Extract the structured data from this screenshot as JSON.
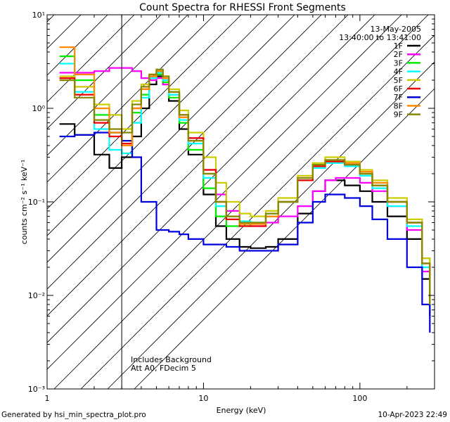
{
  "chart_data": {
    "type": "line",
    "title": "Count Spectra for RHESSI Front Segments",
    "xlabel": "Energy (keV)",
    "ylabel": "counts cm⁻² s⁻¹ keV⁻¹",
    "xscale": "log",
    "yscale": "log",
    "xlim": [
      1,
      300
    ],
    "ylim": [
      0.001,
      10
    ],
    "x_tick_labels": [
      "1",
      "10",
      "100"
    ],
    "y_tick_labels": [
      "10⁻³",
      "10⁻²",
      "10⁻¹",
      "10⁰",
      "10¹"
    ],
    "date": "13-May-2005",
    "time_range": "13:40:00 to 13:41:00",
    "annotations": [
      "Includes Background",
      "Att A0, FDecim 5"
    ],
    "hatched_region_max_kev": 3,
    "series": [
      {
        "name": "1F",
        "color": "#000000",
        "points": [
          [
            1.2,
            0.68
          ],
          [
            1.5,
            0.52
          ],
          [
            2.0,
            0.32
          ],
          [
            2.5,
            0.23
          ],
          [
            3.0,
            0.3
          ],
          [
            3.5,
            0.5
          ],
          [
            4.0,
            1.0
          ],
          [
            4.5,
            1.8
          ],
          [
            5.0,
            2.2
          ],
          [
            5.5,
            1.8
          ],
          [
            6.0,
            1.2
          ],
          [
            7.0,
            0.6
          ],
          [
            8.0,
            0.32
          ],
          [
            10.0,
            0.12
          ],
          [
            12.0,
            0.055
          ],
          [
            14.0,
            0.04
          ],
          [
            17.0,
            0.033
          ],
          [
            20.0,
            0.032
          ],
          [
            25.0,
            0.033
          ],
          [
            30.0,
            0.04
          ],
          [
            40.0,
            0.075
          ],
          [
            50.0,
            0.13
          ],
          [
            60.0,
            0.17
          ],
          [
            70.0,
            0.17
          ],
          [
            80.0,
            0.15
          ],
          [
            100.0,
            0.13
          ],
          [
            120.0,
            0.1
          ],
          [
            150.0,
            0.07
          ],
          [
            200.0,
            0.04
          ],
          [
            250.0,
            0.015
          ],
          [
            280.0,
            0.006
          ]
        ]
      },
      {
        "name": "2F",
        "color": "#ff00ff",
        "points": [
          [
            1.2,
            2.4
          ],
          [
            1.5,
            2.4
          ],
          [
            2.0,
            2.5
          ],
          [
            2.5,
            2.7
          ],
          [
            3.0,
            2.7
          ],
          [
            3.5,
            2.5
          ],
          [
            4.0,
            2.1
          ],
          [
            4.5,
            2.0
          ],
          [
            5.0,
            2.1
          ],
          [
            5.5,
            1.8
          ],
          [
            6.0,
            1.4
          ],
          [
            7.0,
            0.8
          ],
          [
            8.0,
            0.48
          ],
          [
            10.0,
            0.22
          ],
          [
            12.0,
            0.12
          ],
          [
            14.0,
            0.08
          ],
          [
            17.0,
            0.06
          ],
          [
            20.0,
            0.055
          ],
          [
            25.0,
            0.06
          ],
          [
            30.0,
            0.07
          ],
          [
            40.0,
            0.09
          ],
          [
            50.0,
            0.13
          ],
          [
            60.0,
            0.17
          ],
          [
            70.0,
            0.18
          ],
          [
            80.0,
            0.18
          ],
          [
            100.0,
            0.16
          ],
          [
            120.0,
            0.13
          ],
          [
            150.0,
            0.09
          ],
          [
            200.0,
            0.05
          ],
          [
            250.0,
            0.018
          ],
          [
            280.0,
            0.007
          ]
        ]
      },
      {
        "name": "3F",
        "color": "#00ee00",
        "points": [
          [
            1.2,
            3.6
          ],
          [
            1.5,
            2.0
          ],
          [
            2.0,
            0.85
          ],
          [
            2.5,
            0.55
          ],
          [
            3.0,
            0.45
          ],
          [
            3.5,
            0.9
          ],
          [
            4.0,
            1.4
          ],
          [
            4.5,
            2.1
          ],
          [
            5.0,
            2.3
          ],
          [
            5.5,
            1.9
          ],
          [
            6.0,
            1.3
          ],
          [
            7.0,
            0.7
          ],
          [
            8.0,
            0.36
          ],
          [
            10.0,
            0.14
          ],
          [
            12.0,
            0.07
          ],
          [
            14.0,
            0.055
          ],
          [
            17.0,
            0.055
          ],
          [
            20.0,
            0.06
          ],
          [
            25.0,
            0.075
          ],
          [
            30.0,
            0.1
          ],
          [
            40.0,
            0.17
          ],
          [
            50.0,
            0.24
          ],
          [
            60.0,
            0.27
          ],
          [
            70.0,
            0.27
          ],
          [
            80.0,
            0.25
          ],
          [
            100.0,
            0.2
          ],
          [
            120.0,
            0.15
          ],
          [
            150.0,
            0.1
          ],
          [
            200.0,
            0.06
          ],
          [
            250.0,
            0.025
          ],
          [
            280.0,
            0.008
          ]
        ]
      },
      {
        "name": "4F",
        "color": "#00ffff",
        "points": [
          [
            1.2,
            3.0
          ],
          [
            1.5,
            1.5
          ],
          [
            2.0,
            0.6
          ],
          [
            2.5,
            0.36
          ],
          [
            3.0,
            0.33
          ],
          [
            3.5,
            0.7
          ],
          [
            4.0,
            1.3
          ],
          [
            4.5,
            2.1
          ],
          [
            5.0,
            2.4
          ],
          [
            5.5,
            2.0
          ],
          [
            6.0,
            1.4
          ],
          [
            7.0,
            0.75
          ],
          [
            8.0,
            0.42
          ],
          [
            10.0,
            0.18
          ],
          [
            12.0,
            0.09
          ],
          [
            14.0,
            0.07
          ],
          [
            17.0,
            0.062
          ],
          [
            20.0,
            0.06
          ],
          [
            25.0,
            0.075
          ],
          [
            30.0,
            0.1
          ],
          [
            40.0,
            0.17
          ],
          [
            50.0,
            0.23
          ],
          [
            60.0,
            0.26
          ],
          [
            70.0,
            0.26
          ],
          [
            80.0,
            0.24
          ],
          [
            100.0,
            0.19
          ],
          [
            120.0,
            0.14
          ],
          [
            150.0,
            0.09
          ],
          [
            200.0,
            0.055
          ],
          [
            250.0,
            0.02
          ],
          [
            280.0,
            0.007
          ]
        ]
      },
      {
        "name": "5F",
        "color": "#cccc00",
        "points": [
          [
            1.2,
            2.2
          ],
          [
            1.5,
            1.7
          ],
          [
            2.0,
            1.1
          ],
          [
            2.5,
            0.85
          ],
          [
            3.0,
            0.6
          ],
          [
            3.5,
            1.2
          ],
          [
            4.0,
            1.8
          ],
          [
            4.5,
            2.3
          ],
          [
            5.0,
            2.6
          ],
          [
            5.5,
            2.2
          ],
          [
            6.0,
            1.6
          ],
          [
            7.0,
            0.95
          ],
          [
            8.0,
            0.55
          ],
          [
            10.0,
            0.3
          ],
          [
            12.0,
            0.16
          ],
          [
            14.0,
            0.1
          ],
          [
            17.0,
            0.075
          ],
          [
            20.0,
            0.07
          ],
          [
            25.0,
            0.08
          ],
          [
            30.0,
            0.11
          ],
          [
            40.0,
            0.19
          ],
          [
            50.0,
            0.26
          ],
          [
            60.0,
            0.3
          ],
          [
            70.0,
            0.3
          ],
          [
            80.0,
            0.27
          ],
          [
            100.0,
            0.22
          ],
          [
            120.0,
            0.17
          ],
          [
            150.0,
            0.11
          ],
          [
            200.0,
            0.065
          ],
          [
            250.0,
            0.025
          ],
          [
            280.0,
            0.009
          ]
        ]
      },
      {
        "name": "6F",
        "color": "#ee0000",
        "points": [
          [
            1.2,
            2.1
          ],
          [
            1.5,
            1.4
          ],
          [
            2.0,
            0.7
          ],
          [
            2.5,
            0.5
          ],
          [
            3.0,
            0.42
          ],
          [
            3.5,
            1.0
          ],
          [
            4.0,
            1.6
          ],
          [
            4.5,
            2.2
          ],
          [
            5.0,
            2.5
          ],
          [
            5.5,
            2.1
          ],
          [
            6.0,
            1.5
          ],
          [
            7.0,
            0.85
          ],
          [
            8.0,
            0.48
          ],
          [
            10.0,
            0.22
          ],
          [
            12.0,
            0.1
          ],
          [
            14.0,
            0.065
          ],
          [
            17.0,
            0.055
          ],
          [
            20.0,
            0.055
          ],
          [
            25.0,
            0.07
          ],
          [
            30.0,
            0.1
          ],
          [
            40.0,
            0.17
          ],
          [
            50.0,
            0.24
          ],
          [
            60.0,
            0.27
          ],
          [
            70.0,
            0.27
          ],
          [
            80.0,
            0.25
          ],
          [
            100.0,
            0.2
          ],
          [
            120.0,
            0.15
          ],
          [
            150.0,
            0.1
          ],
          [
            200.0,
            0.06
          ],
          [
            250.0,
            0.022
          ],
          [
            280.0,
            0.008
          ]
        ]
      },
      {
        "name": "7F",
        "color": "#0000dd",
        "points": [
          [
            1.2,
            0.5
          ],
          [
            1.5,
            0.52
          ],
          [
            2.0,
            0.55
          ],
          [
            2.5,
            0.55
          ],
          [
            3.0,
            0.45
          ],
          [
            3.5,
            0.3
          ],
          [
            4.0,
            0.1
          ],
          [
            5.0,
            0.05
          ],
          [
            6.0,
            0.048
          ],
          [
            7.0,
            0.045
          ],
          [
            8.0,
            0.04
          ],
          [
            10.0,
            0.035
          ],
          [
            12.0,
            0.035
          ],
          [
            14.0,
            0.033
          ],
          [
            17.0,
            0.03
          ],
          [
            20.0,
            0.03
          ],
          [
            25.0,
            0.03
          ],
          [
            30.0,
            0.035
          ],
          [
            40.0,
            0.06
          ],
          [
            50.0,
            0.1
          ],
          [
            60.0,
            0.12
          ],
          [
            70.0,
            0.12
          ],
          [
            80.0,
            0.11
          ],
          [
            100.0,
            0.09
          ],
          [
            120.0,
            0.065
          ],
          [
            150.0,
            0.04
          ],
          [
            200.0,
            0.02
          ],
          [
            250.0,
            0.008
          ],
          [
            280.0,
            0.004
          ]
        ]
      },
      {
        "name": "8F",
        "color": "#ff8800",
        "points": [
          [
            1.2,
            4.5
          ],
          [
            1.5,
            2.3
          ],
          [
            2.0,
            1.0
          ],
          [
            2.5,
            0.55
          ],
          [
            3.0,
            0.4
          ],
          [
            3.5,
            1.0
          ],
          [
            4.0,
            1.6
          ],
          [
            4.5,
            2.2
          ],
          [
            5.0,
            2.5
          ],
          [
            5.5,
            2.1
          ],
          [
            6.0,
            1.5
          ],
          [
            7.0,
            0.8
          ],
          [
            8.0,
            0.45
          ],
          [
            10.0,
            0.2
          ],
          [
            12.0,
            0.1
          ],
          [
            14.0,
            0.07
          ],
          [
            17.0,
            0.058
          ],
          [
            20.0,
            0.058
          ],
          [
            25.0,
            0.07
          ],
          [
            30.0,
            0.1
          ],
          [
            40.0,
            0.18
          ],
          [
            50.0,
            0.25
          ],
          [
            60.0,
            0.28
          ],
          [
            70.0,
            0.28
          ],
          [
            80.0,
            0.26
          ],
          [
            100.0,
            0.21
          ],
          [
            120.0,
            0.16
          ],
          [
            150.0,
            0.1
          ],
          [
            200.0,
            0.06
          ],
          [
            250.0,
            0.022
          ],
          [
            280.0,
            0.008
          ]
        ]
      },
      {
        "name": "9F",
        "color": "#888800",
        "points": [
          [
            1.2,
            2.0
          ],
          [
            1.5,
            1.3
          ],
          [
            2.0,
            0.75
          ],
          [
            2.5,
            0.6
          ],
          [
            3.0,
            0.55
          ],
          [
            3.5,
            1.1
          ],
          [
            4.0,
            1.7
          ],
          [
            4.5,
            2.3
          ],
          [
            5.0,
            2.6
          ],
          [
            5.5,
            2.2
          ],
          [
            6.0,
            1.5
          ],
          [
            7.0,
            0.85
          ],
          [
            8.0,
            0.45
          ],
          [
            10.0,
            0.2
          ],
          [
            12.0,
            0.1
          ],
          [
            14.0,
            0.07
          ],
          [
            17.0,
            0.06
          ],
          [
            20.0,
            0.06
          ],
          [
            25.0,
            0.075
          ],
          [
            30.0,
            0.1
          ],
          [
            40.0,
            0.18
          ],
          [
            50.0,
            0.25
          ],
          [
            60.0,
            0.28
          ],
          [
            70.0,
            0.28
          ],
          [
            80.0,
            0.25
          ],
          [
            100.0,
            0.2
          ],
          [
            120.0,
            0.15
          ],
          [
            150.0,
            0.1
          ],
          [
            200.0,
            0.06
          ],
          [
            250.0,
            0.022
          ],
          [
            280.0,
            0.008
          ]
        ]
      }
    ]
  },
  "footer": {
    "generated_by": "Generated by hsi_min_spectra_plot.pro",
    "timestamp": "10-Apr-2023 22:49"
  }
}
